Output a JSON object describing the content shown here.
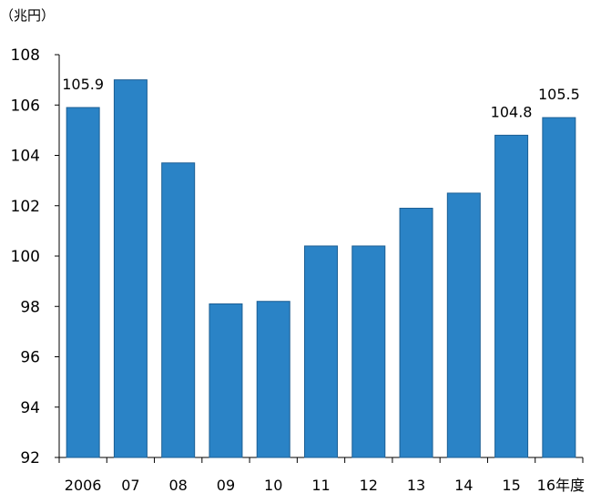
{
  "chart_data": {
    "type": "bar",
    "ylabel": "（兆円）",
    "categories": [
      "2006",
      "07",
      "08",
      "09",
      "10",
      "11",
      "12",
      "13",
      "14",
      "15",
      "16年度"
    ],
    "values": [
      105.9,
      107.0,
      103.7,
      98.1,
      98.2,
      100.4,
      100.4,
      101.9,
      102.5,
      104.8,
      105.5
    ],
    "data_labels": {
      "0": "105.9",
      "9": "104.8",
      "10": "105.5"
    },
    "ylim": [
      92,
      108
    ],
    "yticks": [
      92,
      94,
      96,
      98,
      100,
      102,
      104,
      106,
      108
    ],
    "grid": false,
    "legend": "none",
    "bar_color": "#2a83c6",
    "bar_edge_color": "#1c5f94"
  }
}
